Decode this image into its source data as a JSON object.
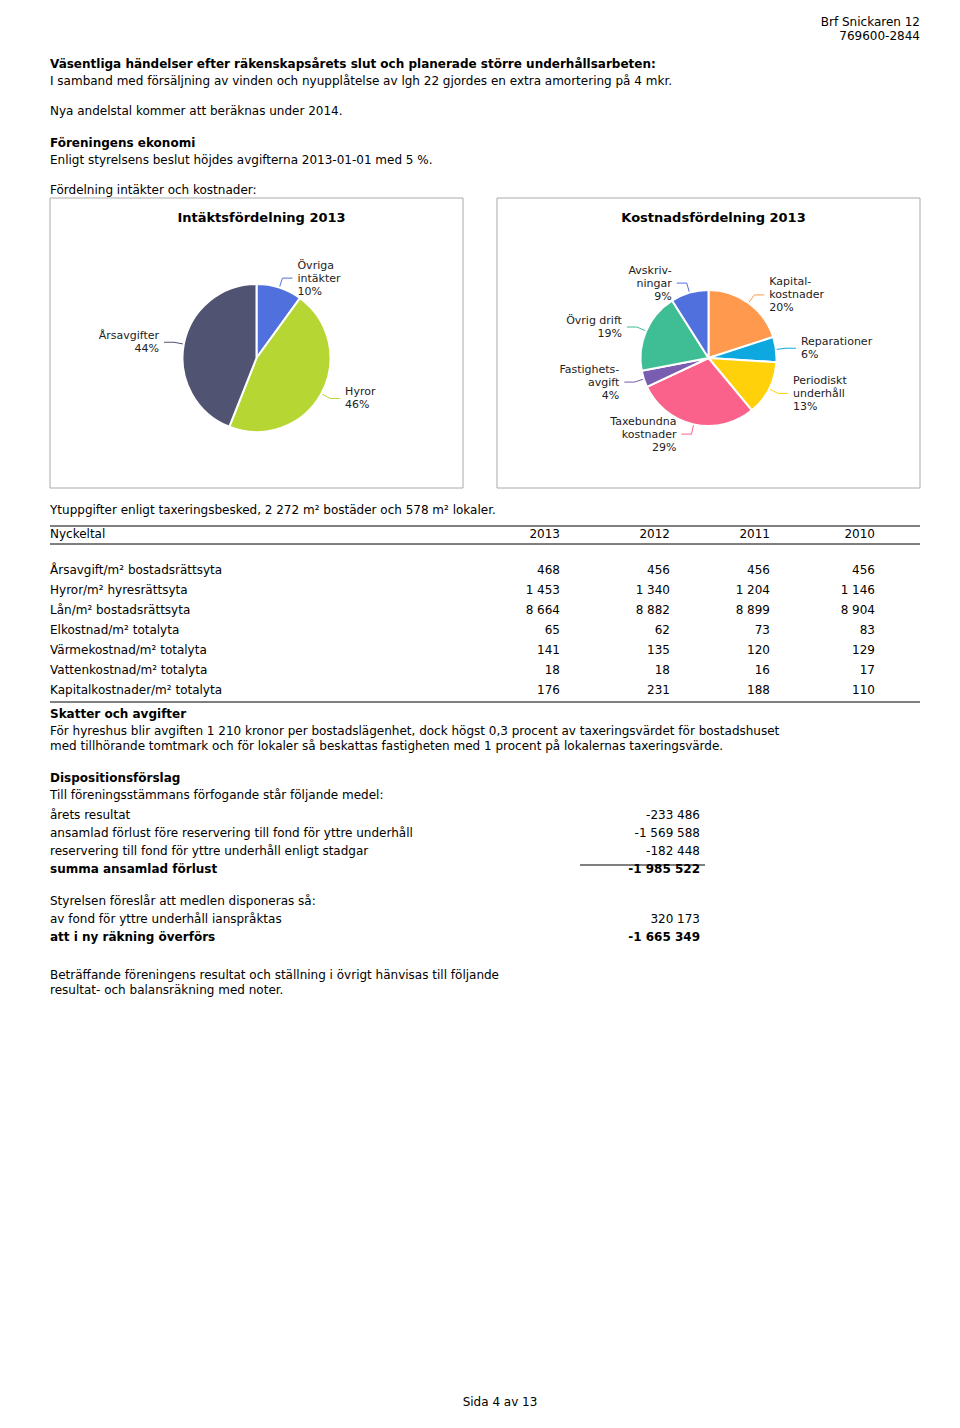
{
  "chart_data": [
    {
      "type": "pie",
      "title": "Intäktsfördelning 2013",
      "categories": [
        "Övriga\nintäkter",
        "Hyror",
        "Årsavgifter"
      ],
      "values": [
        10,
        46,
        44
      ],
      "value_labels": [
        "10%",
        "46%",
        "44%"
      ],
      "data_labels": true,
      "annotations": [
        "Brf Snickaren 12",
        "769600-2844",
        "Väsentliga händelser efter räkenskapsårets slut och planerade större underhållsarbeten:",
        "I samband med försäljning av vinden och nyupplåtelse av lgh 22 gjordes en extra amortering på 4 mkr.",
        "Nya andelstal kommer att beräknas under 2014.",
        "Föreningens ekonomi",
        "Enligt styrelsens beslut höjdes avgifterna 2013-01-01 med 5 %.",
        "Fördelning intäkter och kostnader:",
        "Ytuppgifter enligt taxeringsbesked, 2 272 m² bostäder och 578 m² lokaler.",
        "Skatter och avgifter",
        "För hyreshus blir avgiften 1 210 kronor per bostadslägenhet, dock högst 0,3 procent av taxeringsvärdet för bostadshuset",
        "med tillhörande tomtmark och för lokaler så beskattas fastigheten med 1 procent på lokalernas taxeringsvärde.",
        "Dispositionsförslag",
        "Till föreningsstämmans förfogande står följande medel:",
        "årets resultat",
        "-233 486",
        "ansamlad förlust före reservering till fond för yttre underhåll",
        "-1 569 588",
        "reservering till fond för yttre underhåll enligt stadgar",
        "-182 448",
        "summa ansamlad förlust",
        "-1 985 522",
        "Styrelsen föreslår att medlen disponeras så:",
        "av fond för yttre underhåll ianspråktas",
        "320 173",
        "att i ny räkning överförs",
        "-1 665 349",
        "Beträffande föreningens resultat och ställning i övrigt hänvisas till följande",
        "resultat- och balansräkning med noter.",
        "Sida 4 av 13"
      ]
    },
    {
      "type": "pie",
      "title": "Kostnadsfördelning 2013",
      "categories": [
        "Kapital-\nkostnader",
        "Reparationer",
        "Periodiskt\nunderhåll",
        "Taxebundna\nkostnader",
        "Fastighets-\navgift",
        "Övrig drift",
        "Avskriv-\nningar"
      ],
      "values": [
        20,
        6,
        13,
        29,
        4,
        19,
        9
      ],
      "value_labels": [
        "20%",
        "6%",
        "13%",
        "29%",
        "4%",
        "19%",
        "9%"
      ],
      "data_labels": true
    },
    {
      "type": "table",
      "xlabel": "Nyckeltal",
      "categories": [
        "Årsavgift/m² bostadsrättsyta",
        "Hyror/m² hyresrättsyta",
        "Lån/m² bostadsrättsyta",
        "Elkostnad/m² totalyta",
        "Värmekostnad/m² totalyta",
        "Vattenkostnad/m² totalyta",
        "Kapitalkostnader/m² totalyta"
      ],
      "series": [
        {
          "name": "2013",
          "values": [
            468,
            1453,
            8664,
            65,
            141,
            18,
            176
          ],
          "value_labels": [
            "468",
            "1 453",
            "8 664",
            "65",
            "141",
            "18",
            "176"
          ]
        },
        {
          "name": "2012",
          "values": [
            456,
            1340,
            8882,
            62,
            135,
            18,
            231
          ],
          "value_labels": [
            "456",
            "1 340",
            "8 882",
            "62",
            "135",
            "18",
            "231"
          ]
        },
        {
          "name": "2011",
          "values": [
            456,
            1204,
            8899,
            73,
            120,
            16,
            188
          ],
          "value_labels": [
            "456",
            "1 204",
            "8 899",
            "73",
            "120",
            "16",
            "188"
          ]
        },
        {
          "name": "2010",
          "values": [
            456,
            1146,
            8904,
            83,
            129,
            17,
            110
          ],
          "value_labels": [
            "456",
            "1 146",
            "8 904",
            "83",
            "129",
            "17",
            "110"
          ]
        }
      ]
    }
  ]
}
